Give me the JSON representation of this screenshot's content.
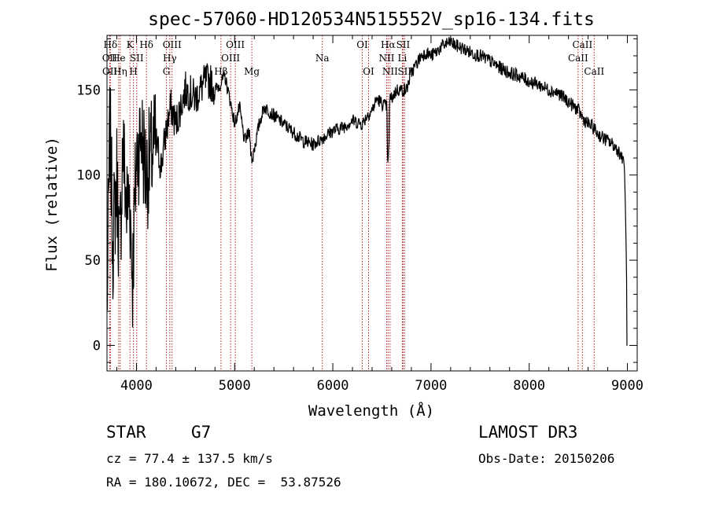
{
  "chart_data": {
    "type": "line",
    "title": "spec-57060-HD120534N515552V_sp16-134.fits",
    "xlabel": "Wavelength (Å)",
    "ylabel": "Flux (relative)",
    "xlim": [
      3700,
      9100
    ],
    "ylim": [
      -15,
      182
    ],
    "xticks": [
      4000,
      5000,
      6000,
      7000,
      8000,
      9000
    ],
    "yticks": [
      0,
      50,
      100,
      150
    ],
    "grid": false,
    "line_color": "#000000",
    "marker_color": "#b22222",
    "series": [
      {
        "x": [
          3700,
          3730,
          3760,
          3800,
          3830,
          3860,
          3900,
          3930,
          3960,
          4000,
          4050,
          4100,
          4150,
          4200,
          4250,
          4300,
          4350,
          4400,
          4450,
          4500,
          4550,
          4600,
          4650,
          4700,
          4750,
          4800,
          4850,
          4900,
          4950,
          5000,
          5050,
          5100,
          5150,
          5200,
          5250,
          5300,
          5400,
          5500,
          5600,
          5700,
          5800,
          5900,
          6000,
          6100,
          6200,
          6300,
          6350,
          6400,
          6450,
          6500,
          6550,
          6560,
          6580,
          6600,
          6650,
          6700,
          6750,
          6800,
          6850,
          6900,
          6950,
          7000,
          7050,
          7100,
          7150,
          7200,
          7250,
          7300,
          7400,
          7500,
          7600,
          7700,
          7800,
          7900,
          8000,
          8100,
          8200,
          8300,
          8400,
          8500,
          8550,
          8600,
          8650,
          8700,
          8750,
          8800,
          8850,
          8900,
          8950,
          8960,
          8970,
          8980,
          8990,
          9000
        ],
        "y": [
          20,
          130,
          60,
          100,
          50,
          120,
          80,
          90,
          40,
          110,
          125,
          100,
          110,
          120,
          105,
          125,
          140,
          130,
          140,
          150,
          148,
          145,
          150,
          155,
          155,
          150,
          153,
          158,
          145,
          130,
          140,
          120,
          125,
          115,
          130,
          140,
          135,
          130,
          125,
          120,
          118,
          122,
          126,
          128,
          132,
          130,
          135,
          138,
          145,
          142,
          140,
          125,
          145,
          145,
          150,
          150,
          150,
          160,
          165,
          170,
          172,
          170,
          172,
          175,
          177,
          178,
          176,
          175,
          172,
          170,
          167,
          163,
          160,
          158,
          155,
          153,
          150,
          148,
          143,
          138,
          133,
          130,
          128,
          124,
          122,
          120,
          118,
          115,
          110,
          110,
          105,
          80,
          50,
          0
        ]
      }
    ],
    "annotations": [
      {
        "label": "Hδ",
        "x": 3735,
        "row": 1
      },
      {
        "label": "OII",
        "x": 3727,
        "row": 2
      },
      {
        "label": "OII",
        "x": 3729,
        "row": 3
      },
      {
        "label": "He",
        "x": 3819,
        "row": 2
      },
      {
        "label": "Hη",
        "x": 3835,
        "row": 3
      },
      {
        "label": "K",
        "x": 3934,
        "row": 1
      },
      {
        "label": "SII",
        "x": 4003,
        "row": 2
      },
      {
        "label": "H",
        "x": 3969,
        "row": 3
      },
      {
        "label": "Hδ",
        "x": 4102,
        "row": 1
      },
      {
        "label": "OIII",
        "x": 4363,
        "row": 1
      },
      {
        "label": "Hγ",
        "x": 4340,
        "row": 2
      },
      {
        "label": "G",
        "x": 4305,
        "row": 3
      },
      {
        "label": "Hβ",
        "x": 4861,
        "row": 3
      },
      {
        "label": "OIII",
        "x": 5007,
        "row": 1
      },
      {
        "label": "OIII",
        "x": 4959,
        "row": 2
      },
      {
        "label": "Mg",
        "x": 5175,
        "row": 3
      },
      {
        "label": "Na",
        "x": 5893,
        "row": 2
      },
      {
        "label": "OI",
        "x": 6300,
        "row": 1
      },
      {
        "label": "OI",
        "x": 6364,
        "row": 3
      },
      {
        "label": "Hα",
        "x": 6563,
        "row": 1
      },
      {
        "label": "NII",
        "x": 6548,
        "row": 2
      },
      {
        "label": "NII",
        "x": 6583,
        "row": 3
      },
      {
        "label": "SII",
        "x": 6716,
        "row": 1
      },
      {
        "label": "Li",
        "x": 6708,
        "row": 2
      },
      {
        "label": "SII",
        "x": 6731,
        "row": 3
      },
      {
        "label": "CaII",
        "x": 8542,
        "row": 1
      },
      {
        "label": "CaII",
        "x": 8498,
        "row": 2
      },
      {
        "label": "CaII",
        "x": 8662,
        "row": 3
      }
    ]
  },
  "info": {
    "class": "STAR",
    "subclass": "G7",
    "survey": "LAMOST DR3",
    "cz": "cz = 77.4 ± 137.5 km/s",
    "obs_date": "Obs-Date: 20150206",
    "radec": "RA = 180.10672, DEC =  53.87526"
  }
}
